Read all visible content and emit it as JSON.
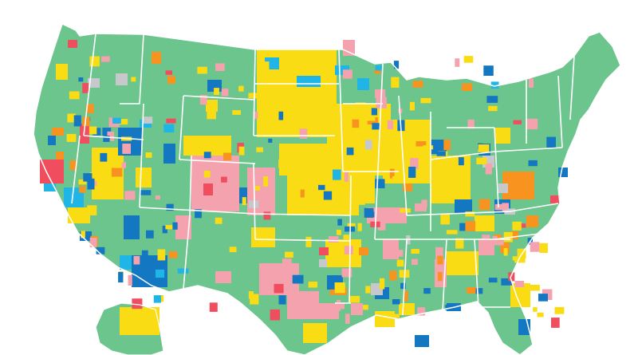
{
  "map": {
    "kind": "US county choropleth",
    "background": "#ffffff",
    "border_color": "#ffffff",
    "category_colors": {
      "green": "#6cc58d",
      "yellow": "#fadc14",
      "pink": "#f4a3ae",
      "dark_blue": "#1377c2",
      "light_blue": "#1fb5e6",
      "orange": "#f7931e",
      "red": "#f04e5e",
      "gray": "#c6c8cc"
    },
    "dominant_category": "green"
  }
}
